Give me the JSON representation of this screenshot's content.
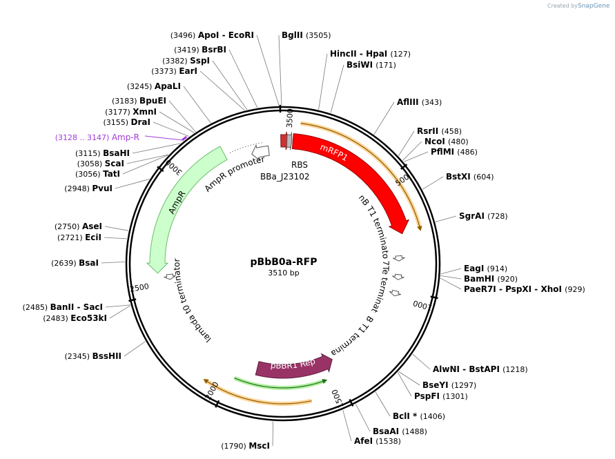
{
  "credit": {
    "prefix": "Created by",
    "brand": "SnapGene"
  },
  "plasmid": {
    "name": "pBbB0a-RFP",
    "size_label": "3510 bp",
    "length": 3510
  },
  "ticks": [
    {
      "pos": 500,
      "label": "500"
    },
    {
      "pos": 1000,
      "label": "1000"
    },
    {
      "pos": 1500,
      "label": "1500"
    },
    {
      "pos": 2000,
      "label": "2000"
    },
    {
      "pos": 2500,
      "label": "2500"
    },
    {
      "pos": 3000,
      "label": "3000"
    },
    {
      "pos": 3500,
      "label": "3500"
    }
  ],
  "enzymes": [
    {
      "name": "ApoI - EcoRI",
      "pos": "(3496)",
      "site": 3496
    },
    {
      "name": "BglII",
      "pos": "(3505)",
      "site": 3505
    },
    {
      "name": "BsrBI",
      "pos": "(3419)",
      "site": 3419
    },
    {
      "name": "SspI",
      "pos": "(3382)",
      "site": 3382
    },
    {
      "name": "EarI",
      "pos": "(3373)",
      "site": 3373
    },
    {
      "name": "ApaLI",
      "pos": "(3245)",
      "site": 3245
    },
    {
      "name": "BpuEI",
      "pos": "(3183)",
      "site": 3183
    },
    {
      "name": "XmnI",
      "pos": "(3177)",
      "site": 3177
    },
    {
      "name": "DraI",
      "pos": "(3155)",
      "site": 3155
    },
    {
      "name": "BsaHI",
      "pos": "(3115)",
      "site": 3115
    },
    {
      "name": "ScaI",
      "pos": "(3058)",
      "site": 3058
    },
    {
      "name": "TatI",
      "pos": "(3056)",
      "site": 3056
    },
    {
      "name": "PvuI",
      "pos": "(2948)",
      "site": 2948
    },
    {
      "name": "AseI",
      "pos": "(2750)",
      "site": 2750
    },
    {
      "name": "EciI",
      "pos": "(2721)",
      "site": 2721
    },
    {
      "name": "BsaI",
      "pos": "(2639)",
      "site": 2639
    },
    {
      "name": "BanII - SacI",
      "pos": "(2485)",
      "site": 2485
    },
    {
      "name": "Eco53kI",
      "pos": "(2483)",
      "site": 2483
    },
    {
      "name": "BssHII",
      "pos": "(2345)",
      "site": 2345
    },
    {
      "name": "MscI",
      "pos": "(1790)",
      "site": 1790
    },
    {
      "name": "HincII - HpaI",
      "pos": "(127)",
      "site": 127
    },
    {
      "name": "BsiWI",
      "pos": "(171)",
      "site": 171
    },
    {
      "name": "AflIII",
      "pos": "(343)",
      "site": 343
    },
    {
      "name": "RsrII",
      "pos": "(458)",
      "site": 458
    },
    {
      "name": "NcoI",
      "pos": "(480)",
      "site": 480
    },
    {
      "name": "PflMI",
      "pos": "(486)",
      "site": 486
    },
    {
      "name": "BstXI",
      "pos": "(604)",
      "site": 604
    },
    {
      "name": "SgrAI",
      "pos": "(728)",
      "site": 728
    },
    {
      "name": "EagI",
      "pos": "(914)",
      "site": 914
    },
    {
      "name": "BamHI",
      "pos": "(920)",
      "site": 920
    },
    {
      "name": "PaeR7I - PspXI - XhoI",
      "pos": "(929)",
      "site": 929
    },
    {
      "name": "AlwNI - BstAPI",
      "pos": "(1218)",
      "site": 1218
    },
    {
      "name": "BseYI",
      "pos": "(1297)",
      "site": 1297
    },
    {
      "name": "PspFI",
      "pos": "(1301)",
      "site": 1301
    },
    {
      "name": "BclI *",
      "pos": "(1406)",
      "site": 1406
    },
    {
      "name": "BsaAI",
      "pos": "(1488)",
      "site": 1488
    },
    {
      "name": "AfeI",
      "pos": "(1538)",
      "site": 1538
    }
  ],
  "ampr_primer": {
    "name": "Amp-R",
    "pos": "(3128 .. 3147)",
    "site": 3137,
    "color": "#a23ad9"
  },
  "features": {
    "rbs": "RBS",
    "bba": "BBa_J23102",
    "mrfp1": "mRFP1",
    "rrnb1": "rrnB T1 terminator",
    "t7te": "T7Te terminator",
    "rrnb2": "rrnB T1 terminator",
    "pbbr1": "pBBR1 Rep",
    "lambda": "lambda t0 terminator",
    "ampr": "AmpR",
    "ampr_promoter": "AmpR promoter"
  },
  "colors": {
    "mrfp1": "#ff0000",
    "pbbr1": "#993366",
    "ampr": "#ccffcc",
    "rbs": "#cc3333",
    "orange_halo": "#ffd699",
    "green_halo": "#b3f0a0",
    "backbone": "#000000"
  }
}
